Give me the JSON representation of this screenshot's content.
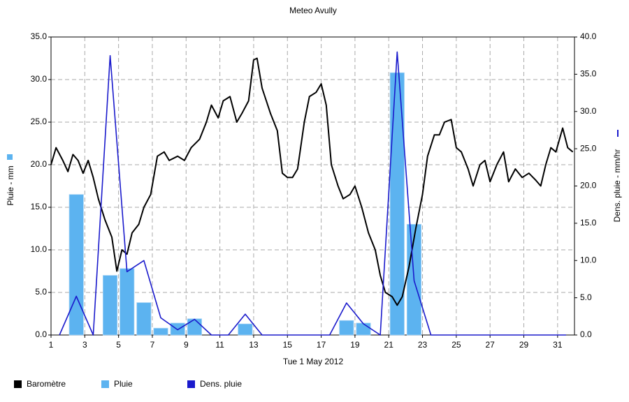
{
  "chart_data": {
    "type": "combo",
    "title": "Meteo  Avully",
    "x_label": "Tue 1 May 2012",
    "y_label": "Pluie - mm",
    "y2_label": "Dens. pluie - mm/hr",
    "xlim": [
      1,
      32
    ],
    "xticks": [
      1,
      3,
      5,
      7,
      9,
      11,
      13,
      15,
      17,
      19,
      21,
      23,
      25,
      27,
      29,
      31
    ],
    "ylim": [
      0,
      35
    ],
    "yticks": [
      {
        "value": 0,
        "label": "0.0"
      },
      {
        "value": 5,
        "label": "5.0"
      },
      {
        "value": 10,
        "label": "10.0"
      },
      {
        "value": 15,
        "label": "15.0"
      },
      {
        "value": 20,
        "label": "20.0"
      },
      {
        "value": 25,
        "label": "25.0"
      },
      {
        "value": 30,
        "label": "30.0"
      },
      {
        "value": 35,
        "label": "35.0"
      }
    ],
    "y2lim": [
      0,
      40
    ],
    "y2ticks": [
      {
        "value": 0,
        "label": "0.0"
      },
      {
        "value": 5,
        "label": "5.0"
      },
      {
        "value": 10,
        "label": "10.0"
      },
      {
        "value": 15,
        "label": "15.0"
      },
      {
        "value": 20,
        "label": "20.0"
      },
      {
        "value": 25,
        "label": "25.0"
      },
      {
        "value": 30,
        "label": "30.0"
      },
      {
        "value": 35,
        "label": "35.0"
      },
      {
        "value": 40,
        "label": "40.0"
      }
    ],
    "grid": true,
    "series": [
      {
        "name": "Baromètre",
        "type": "line",
        "color": "#000000",
        "x": [
          1.0,
          1.3,
          1.7,
          2.0,
          2.3,
          2.6,
          2.9,
          3.2,
          3.5,
          3.8,
          4.2,
          4.6,
          4.9,
          5.2,
          5.5,
          5.8,
          6.2,
          6.5,
          6.9,
          7.3,
          7.7,
          8.0,
          8.5,
          8.9,
          9.3,
          9.8,
          10.2,
          10.5,
          10.9,
          11.2,
          11.6,
          12.0,
          12.3,
          12.7,
          13.0,
          13.2,
          13.5,
          14.0,
          14.4,
          14.7,
          15.0,
          15.3,
          15.6,
          16.0,
          16.3,
          16.7,
          17.0,
          17.3,
          17.6,
          18.0,
          18.3,
          18.7,
          19.0,
          19.4,
          19.8,
          20.2,
          20.5,
          20.8,
          21.2,
          21.5,
          21.8,
          22.2,
          22.6,
          23.0,
          23.3,
          23.7,
          24.0,
          24.3,
          24.7,
          25.0,
          25.3,
          25.7,
          26.0,
          26.4,
          26.7,
          27.0,
          27.4,
          27.8,
          28.1,
          28.5,
          28.9,
          29.3,
          29.7,
          30.0,
          30.3,
          30.6,
          30.9,
          31.3,
          31.6,
          31.9
        ],
        "values": [
          20,
          22,
          20.5,
          19.2,
          21.2,
          20.5,
          19,
          20.5,
          18.5,
          16,
          13.5,
          11.5,
          7.5,
          10,
          9.5,
          12,
          13,
          15,
          16.5,
          21,
          21.5,
          20.5,
          21,
          20.5,
          22,
          23,
          25,
          27,
          25.5,
          27.5,
          28,
          25,
          26,
          27.5,
          32.3,
          32.5,
          29,
          26,
          24,
          19,
          18.5,
          18.5,
          19.5,
          25,
          28,
          28.5,
          29.5,
          27,
          20,
          17.5,
          16,
          16.5,
          17.5,
          15,
          12,
          10,
          7,
          5,
          4.5,
          3.5,
          4.5,
          8,
          12.5,
          16.5,
          21,
          23.5,
          23.5,
          25,
          25.3,
          22,
          21.5,
          19.5,
          17.5,
          20,
          20.5,
          18,
          20,
          21.5,
          18,
          19.5,
          18.5,
          19,
          18.2,
          17.5,
          20,
          22,
          21.5,
          24.3,
          22,
          21.5
        ]
      },
      {
        "name": "Pluie",
        "type": "bar",
        "color": "#5cb3f0",
        "x": [
          2.5,
          4.5,
          5.5,
          6.5,
          7.5,
          8.5,
          9.5,
          12.5,
          18.5,
          19.5,
          21.5,
          22.5
        ],
        "values": [
          16.5,
          7.0,
          7.8,
          3.8,
          0.8,
          1.4,
          1.9,
          1.3,
          1.7,
          1.4,
          30.8,
          13.0
        ]
      },
      {
        "name": "Dens. pluie",
        "type": "line",
        "axis": "y2",
        "color": "#1a1acc",
        "x": [
          1.5,
          2.5,
          3.5,
          4.5,
          5.5,
          6.5,
          7.5,
          8.5,
          9.5,
          10.5,
          11.5,
          12.5,
          13.5,
          14.5,
          15.5,
          16.5,
          17.5,
          18.5,
          19.5,
          20.5,
          21.5,
          22.5,
          23.5,
          24.5,
          25.5,
          26.5,
          27.5,
          28.5,
          29.5,
          30.5,
          31.5
        ],
        "values": [
          0,
          5.2,
          0,
          37.5,
          8.5,
          10.0,
          2.3,
          0.7,
          2.1,
          0,
          0,
          2.8,
          0,
          0,
          0,
          0,
          0,
          4.3,
          1.5,
          0,
          38.0,
          7.3,
          0,
          0,
          0,
          0,
          0,
          0,
          0,
          0,
          0
        ]
      }
    ]
  }
}
